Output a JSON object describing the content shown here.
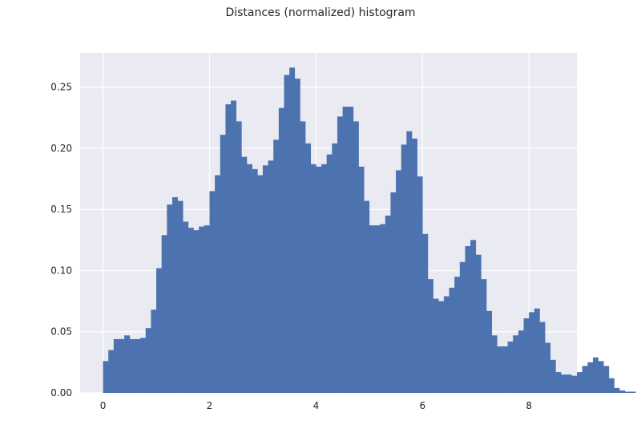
{
  "chart_data": {
    "type": "bar",
    "title": "Distances (normalized) histogram",
    "xlabel": "",
    "ylabel": "",
    "xlim": [
      -0.43,
      8.9
    ],
    "ylim": [
      0,
      0.278
    ],
    "grid": true,
    "bar_color": "#4c72b0",
    "bin_width": 0.1,
    "x_start": 0.0,
    "values": [
      0.026,
      0.035,
      0.044,
      0.044,
      0.047,
      0.044,
      0.044,
      0.045,
      0.053,
      0.068,
      0.102,
      0.129,
      0.154,
      0.16,
      0.157,
      0.14,
      0.135,
      0.133,
      0.136,
      0.137,
      0.165,
      0.178,
      0.211,
      0.236,
      0.239,
      0.222,
      0.193,
      0.187,
      0.183,
      0.178,
      0.186,
      0.19,
      0.207,
      0.233,
      0.26,
      0.266,
      0.257,
      0.222,
      0.204,
      0.187,
      0.185,
      0.187,
      0.195,
      0.204,
      0.226,
      0.234,
      0.234,
      0.222,
      0.185,
      0.157,
      0.137,
      0.137,
      0.138,
      0.145,
      0.164,
      0.182,
      0.203,
      0.214,
      0.208,
      0.177,
      0.13,
      0.093,
      0.077,
      0.075,
      0.079,
      0.086,
      0.095,
      0.107,
      0.12,
      0.125,
      0.113,
      0.093,
      0.067,
      0.047,
      0.038,
      0.038,
      0.042,
      0.047,
      0.051,
      0.061,
      0.066,
      0.069,
      0.058,
      0.041,
      0.027,
      0.017,
      0.015,
      0.015,
      0.014,
      0.017,
      0.022,
      0.025,
      0.029,
      0.026,
      0.022,
      0.012,
      0.004,
      0.002,
      0.001,
      0.001
    ],
    "xticks": [
      0,
      2,
      4,
      6,
      8
    ],
    "xtick_labels": [
      "0",
      "2",
      "4",
      "6",
      "8"
    ],
    "yticks": [
      0.0,
      0.05,
      0.1,
      0.15,
      0.2,
      0.25
    ],
    "ytick_labels": [
      "0.00",
      "0.05",
      "0.10",
      "0.15",
      "0.20",
      "0.25"
    ]
  }
}
